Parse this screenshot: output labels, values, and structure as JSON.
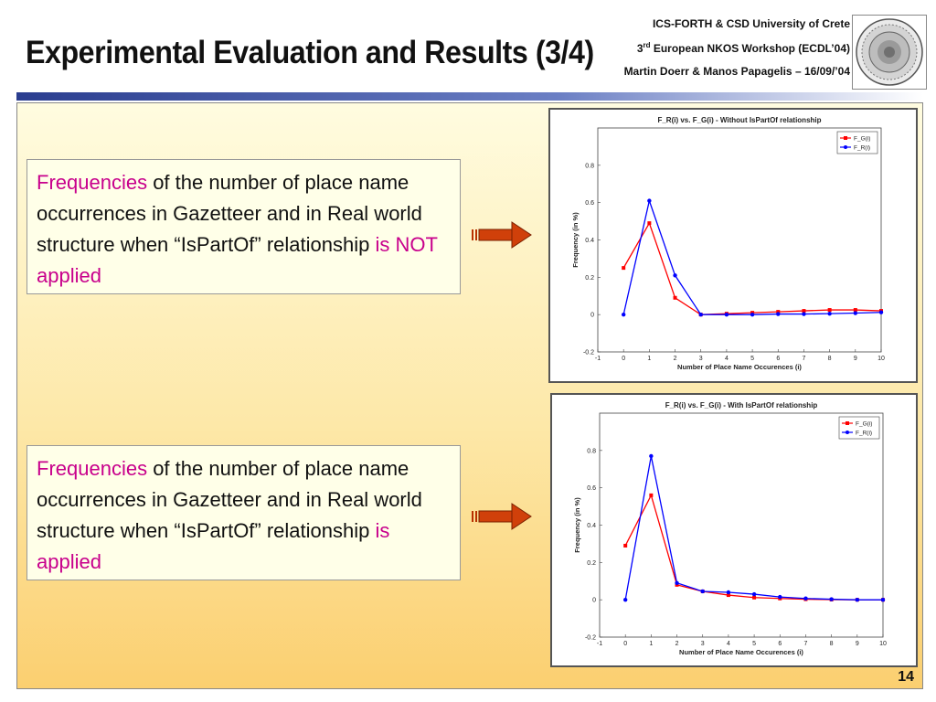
{
  "header": {
    "title": "Experimental Evaluation and Results (3/4)",
    "org": "ICS-FORTH & CSD University of Crete",
    "workshop_prefix": "3",
    "workshop_sup": "rd",
    "workshop_rest": " European NKOS Workshop (ECDL’04)",
    "authors": "Martin Doerr & Manos Papagelis – 16/09/’04"
  },
  "boxes": [
    {
      "hl1": "Frequencies",
      "text": " of the number of place name occurrences in Gazetteer and in Real world structure when “IsPartOf” relationship ",
      "hl2": "is NOT applied"
    },
    {
      "hl1": "Frequencies",
      "text": " of the number of place name occurrences in Gazetteer and in Real world structure when “IsPartOf” relationship ",
      "hl2": "is applied"
    }
  ],
  "colors": {
    "series_g": "#ff0000",
    "series_r": "#0000ff",
    "highlight": "#c8008c"
  },
  "page_number": "14",
  "chart_data": [
    {
      "type": "line",
      "title": "F_R(i) vs. F_G(i) - Without IsPartOf relationship",
      "xlabel": "Number of Place Name Occurences (i)",
      "ylabel": "Frequency (in %)",
      "xlim": [
        -1,
        10
      ],
      "ylim": [
        -0.2,
        1.0
      ],
      "xticks": [
        "-1",
        "0",
        "1",
        "2",
        "3",
        "4",
        "5",
        "6",
        "7",
        "8",
        "9",
        "10"
      ],
      "yticks": [
        "-0.2",
        "0",
        "0.2",
        "0.4",
        "0.6",
        "0.8"
      ],
      "x": [
        0,
        1,
        2,
        3,
        4,
        5,
        6,
        7,
        8,
        9,
        10
      ],
      "series": [
        {
          "name": "F_G(i)",
          "color": "#ff0000",
          "marker": "square",
          "values": [
            0.25,
            0.49,
            0.09,
            0.0,
            0.005,
            0.01,
            0.015,
            0.02,
            0.025,
            0.025,
            0.02
          ]
        },
        {
          "name": "F_R(i)",
          "color": "#0000ff",
          "marker": "circle",
          "values": [
            0.0,
            0.61,
            0.21,
            0.0,
            0.0,
            0.0,
            0.003,
            0.003,
            0.005,
            0.008,
            0.012
          ]
        }
      ],
      "legend": "top-right"
    },
    {
      "type": "line",
      "title": "F_R(i) vs. F_G(i) - With IsPartOf relationship",
      "xlabel": "Number of Place Name Occurences (i)",
      "ylabel": "Frequency (in %)",
      "xlim": [
        -1,
        10
      ],
      "ylim": [
        -0.2,
        1.0
      ],
      "xticks": [
        "-1",
        "0",
        "1",
        "2",
        "3",
        "4",
        "5",
        "6",
        "7",
        "8",
        "9",
        "10"
      ],
      "yticks": [
        "-0.2",
        "0",
        "0.2",
        "0.4",
        "0.6",
        "0.8"
      ],
      "x": [
        0,
        1,
        2,
        3,
        4,
        5,
        6,
        7,
        8,
        9,
        10
      ],
      "series": [
        {
          "name": "F_G(i)",
          "color": "#ff0000",
          "marker": "square",
          "values": [
            0.29,
            0.56,
            0.08,
            0.045,
            0.025,
            0.012,
            0.007,
            0.003,
            0.001,
            0.0,
            0.0
          ]
        },
        {
          "name": "F_R(i)",
          "color": "#0000ff",
          "marker": "circle",
          "values": [
            0.0,
            0.77,
            0.09,
            0.045,
            0.04,
            0.03,
            0.015,
            0.007,
            0.003,
            0.0,
            0.0
          ]
        }
      ],
      "legend": "top-right"
    }
  ]
}
